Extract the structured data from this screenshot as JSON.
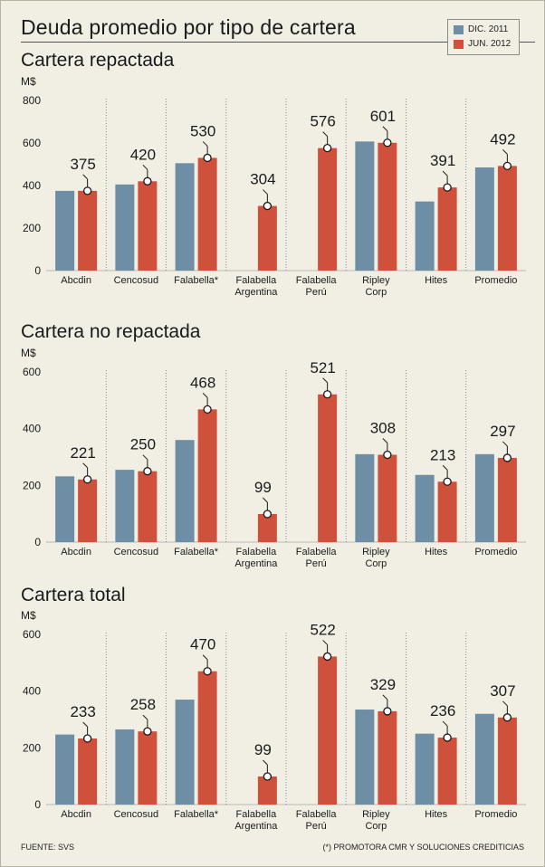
{
  "header": {
    "title": "Deuda promedio por tipo de cartera"
  },
  "legend": [
    {
      "label": "DIC. 2011",
      "color": "#6e8ea6"
    },
    {
      "label": "JUN. 2012",
      "color": "#d0513b"
    }
  ],
  "footer": {
    "source": "FUENTE: SVS",
    "footnote": "(*) PROMOTORA CMR Y SOLUCIONES CREDITICIAS"
  },
  "chart_data": [
    {
      "type": "bar",
      "title": "Cartera repactada",
      "ylabel": "M$",
      "ylim": [
        0,
        800
      ],
      "yticks": [
        0,
        200,
        400,
        600,
        800
      ],
      "categories": [
        "Abcdin",
        "Cencosud",
        "Falabella*",
        "Falabella Argentina",
        "Falabella Perú",
        "Ripley Corp",
        "Hites",
        "Promedio"
      ],
      "series": [
        {
          "name": "DIC. 2011",
          "color": "#6e8ea6",
          "values": [
            375,
            405,
            505,
            0,
            0,
            607,
            325,
            485
          ]
        },
        {
          "name": "JUN. 2012",
          "color": "#d0513b",
          "values": [
            375,
            420,
            530,
            304,
            576,
            601,
            391,
            492
          ]
        }
      ],
      "data_labels": [
        "375",
        "420",
        "530",
        "304",
        "576",
        "601",
        "391",
        "492"
      ]
    },
    {
      "type": "bar",
      "title": "Cartera no repactada",
      "ylabel": "M$",
      "ylim": [
        0,
        600
      ],
      "yticks": [
        0,
        200,
        400,
        600
      ],
      "categories": [
        "Abcdin",
        "Cencosud",
        "Falabella*",
        "Falabella Argentina",
        "Falabella Perú",
        "Ripley Corp",
        "Hites",
        "Promedio"
      ],
      "series": [
        {
          "name": "DIC. 2011",
          "color": "#6e8ea6",
          "values": [
            232,
            255,
            360,
            0,
            0,
            310,
            237,
            310
          ]
        },
        {
          "name": "JUN. 2012",
          "color": "#d0513b",
          "values": [
            221,
            250,
            468,
            99,
            521,
            308,
            213,
            297
          ]
        }
      ],
      "data_labels": [
        "221",
        "250",
        "468",
        "99",
        "521",
        "308",
        "213",
        "297"
      ]
    },
    {
      "type": "bar",
      "title": "Cartera total",
      "ylabel": "M$",
      "ylim": [
        0,
        600
      ],
      "yticks": [
        0,
        200,
        400,
        600
      ],
      "categories": [
        "Abcdin",
        "Cencosud",
        "Falabella*",
        "Falabella Argentina",
        "Falabella Perú",
        "Ripley Corp",
        "Hites",
        "Promedio"
      ],
      "series": [
        {
          "name": "DIC. 2011",
          "color": "#6e8ea6",
          "values": [
            247,
            265,
            370,
            0,
            0,
            335,
            250,
            320
          ]
        },
        {
          "name": "JUN. 2012",
          "color": "#d0513b",
          "values": [
            233,
            258,
            470,
            99,
            522,
            329,
            236,
            307
          ]
        }
      ],
      "data_labels": [
        "233",
        "258",
        "470",
        "99",
        "522",
        "329",
        "236",
        "307"
      ]
    }
  ]
}
